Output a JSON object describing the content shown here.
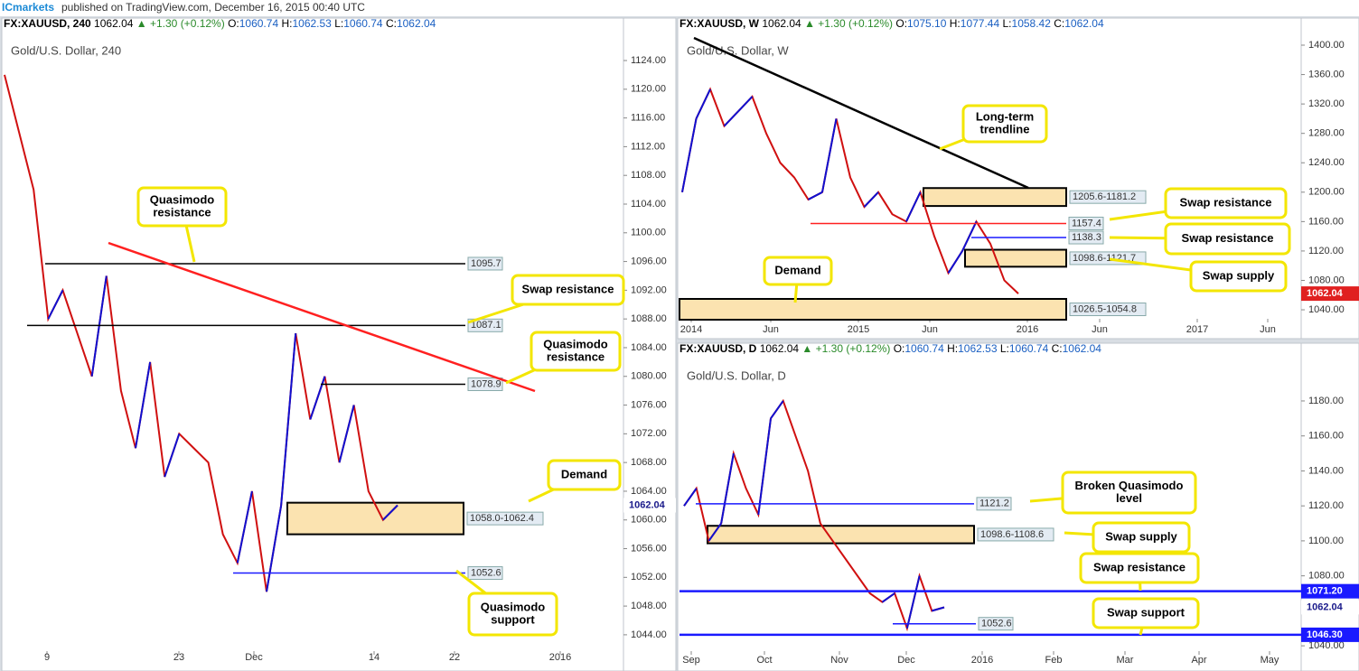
{
  "header": {
    "brand": "ICmarkets",
    "text": "published on TradingView.com, December 16, 2015 00:40 UTC"
  },
  "panels": [
    {
      "symbol": "FX:XAUUSD, 240",
      "price": "1062.04",
      "change": "▲ +1.30 (+0.12%)",
      "ohlc": [
        {
          "k": "O:",
          "v": "1060.74"
        },
        {
          "k": "H:",
          "v": "1062.53"
        },
        {
          "k": "L:",
          "v": "1060.74"
        },
        {
          "k": "C:",
          "v": "1062.04"
        }
      ],
      "chart_title": "Gold/U.S. Dollar, 240",
      "ylim": [
        1042.1,
        1127.4
      ],
      "yticks": [
        {
          "value": 1044,
          "label": "1044.00"
        },
        {
          "value": 1048,
          "label": "1048.00"
        },
        {
          "value": 1052,
          "label": "1052.00"
        },
        {
          "value": 1056,
          "label": "1056.00"
        },
        {
          "value": 1060,
          "label": "1060.00"
        },
        {
          "value": 1064,
          "label": "1064.00"
        },
        {
          "value": 1068,
          "label": "1068.00"
        },
        {
          "value": 1072,
          "label": "1072.00"
        },
        {
          "value": 1076,
          "label": "1076.00"
        },
        {
          "value": 1080,
          "label": "1080.00"
        },
        {
          "value": 1084,
          "label": "1084.00"
        },
        {
          "value": 1088,
          "label": "1088.00"
        },
        {
          "value": 1092,
          "label": "1092.00"
        },
        {
          "value": 1096,
          "label": "1096.00"
        },
        {
          "value": 1100,
          "label": "1100.00"
        },
        {
          "value": 1104,
          "label": "1104.00"
        },
        {
          "value": 1108,
          "label": "1108.00"
        },
        {
          "value": 1112,
          "label": "1112.00"
        },
        {
          "value": 1116,
          "label": "1116.00"
        },
        {
          "value": 1120,
          "label": "1120.00"
        },
        {
          "value": 1124,
          "label": "1124.00"
        }
      ],
      "xlabels": [
        "9",
        "23",
        "Dec",
        "14",
        "22",
        "2016"
      ],
      "closes": [
        1122,
        1114,
        1106,
        1088,
        1092,
        1086,
        1080,
        1094,
        1078,
        1070,
        1082,
        1066,
        1072,
        1070,
        1068,
        1058,
        1054,
        1064,
        1050,
        1062,
        1086,
        1074,
        1080,
        1068,
        1076,
        1064,
        1060,
        1062.04
      ],
      "current": {
        "value": 1062.04,
        "label": "1062.04"
      },
      "levels": [
        {
          "value": 1095.7,
          "label": "1095.7",
          "color": "#000000"
        },
        {
          "value": 1087.1,
          "label": "1087.1",
          "color": "#000000"
        },
        {
          "value": 1078.9,
          "label": "1078.9",
          "color": "#000000"
        },
        {
          "value": 1052.6,
          "label": "1052.6",
          "color": "#1a1aff"
        }
      ],
      "zones": [
        {
          "low": 1058.0,
          "high": 1062.4,
          "label": "1058.0-1062.4"
        }
      ],
      "callouts": [
        {
          "lines": [
            "Quasimodo",
            "resistance"
          ]
        },
        {
          "lines": [
            "Swap resistance"
          ]
        },
        {
          "lines": [
            "Quasimodo",
            "resistance"
          ]
        },
        {
          "lines": [
            "Demand"
          ]
        },
        {
          "lines": [
            "Quasimodo",
            "support"
          ]
        }
      ]
    },
    {
      "symbol": "FX:XAUUSD, W",
      "price": "1062.04",
      "change": "▲ +1.30 (+0.12%)",
      "ohlc": [
        {
          "k": "O:",
          "v": "1075.10"
        },
        {
          "k": "H:",
          "v": "1077.44"
        },
        {
          "k": "L:",
          "v": "1058.42"
        },
        {
          "k": "C:",
          "v": "1062.04"
        }
      ],
      "chart_title": "Gold/U.S. Dollar, W",
      "ylim": [
        1025.3,
        1412.3
      ],
      "yticks": [
        {
          "value": 1040,
          "label": "1040.00"
        },
        {
          "value": 1080,
          "label": "1080.00"
        },
        {
          "value": 1120,
          "label": "1120.00"
        },
        {
          "value": 1160,
          "label": "1160.00"
        },
        {
          "value": 1200,
          "label": "1200.00"
        },
        {
          "value": 1240,
          "label": "1240.00"
        },
        {
          "value": 1280,
          "label": "1280.00"
        },
        {
          "value": 1320,
          "label": "1320.00"
        },
        {
          "value": 1360,
          "label": "1360.00"
        },
        {
          "value": 1400,
          "label": "1400.00"
        }
      ],
      "xlabels": [
        "2014",
        "Jun",
        "2015",
        "Jun",
        "2016",
        "Jun",
        "2017",
        "Jun"
      ],
      "closes": [
        1200,
        1300,
        1340,
        1290,
        1310,
        1330,
        1280,
        1240,
        1220,
        1190,
        1200,
        1300,
        1220,
        1180,
        1200,
        1170,
        1160,
        1200,
        1140,
        1090,
        1120,
        1160,
        1130,
        1080,
        1062
      ],
      "current": {
        "value": 1062.04,
        "label": "1062.04"
      },
      "levels": [
        {
          "value": 1157.4,
          "label": "1157.4",
          "color": "#ff2020"
        },
        {
          "value": 1138.3,
          "label": "1138.3",
          "color": "#1a1aff"
        }
      ],
      "zones": [
        {
          "low": 1181.2,
          "high": 1205.6,
          "label": "1205.6-1181.2"
        },
        {
          "low": 1098.6,
          "high": 1121.7,
          "label": "1098.6-1121.7"
        },
        {
          "low": 1026.5,
          "high": 1054.8,
          "label": "1026.5-1054.8"
        }
      ],
      "callouts": [
        {
          "lines": [
            "Long-term",
            "trendline"
          ]
        },
        {
          "lines": [
            "Swap resistance"
          ]
        },
        {
          "lines": [
            "Swap resistance"
          ]
        },
        {
          "lines": [
            "Swap supply"
          ]
        },
        {
          "lines": [
            "Demand"
          ]
        }
      ]
    },
    {
      "symbol": "FX:XAUUSD, D",
      "price": "1062.04",
      "change": "▲ +1.30 (+0.12%)",
      "ohlc": [
        {
          "k": "O:",
          "v": "1060.74"
        },
        {
          "k": "H:",
          "v": "1062.53"
        },
        {
          "k": "L:",
          "v": "1060.74"
        },
        {
          "k": "C:",
          "v": "1062.04"
        }
      ],
      "chart_title": "Gold/U.S. Dollar, D",
      "ylim": [
        1038.5,
        1202.7
      ],
      "yticks": [
        {
          "value": 1040,
          "label": "1040.00"
        },
        {
          "value": 1060,
          "label": "1060.00"
        },
        {
          "value": 1080,
          "label": "1080.00"
        },
        {
          "value": 1100,
          "label": "1100.00"
        },
        {
          "value": 1120,
          "label": "1120.00"
        },
        {
          "value": 1140,
          "label": "1140.00"
        },
        {
          "value": 1160,
          "label": "1160.00"
        },
        {
          "value": 1180,
          "label": "1180.00"
        }
      ],
      "xlabels": [
        "Sep",
        "Oct",
        "Nov",
        "Dec",
        "2016",
        "Feb",
        "Mar",
        "Apr",
        "May"
      ],
      "closes": [
        1120,
        1130,
        1100,
        1110,
        1150,
        1130,
        1115,
        1170,
        1180,
        1160,
        1140,
        1110,
        1100,
        1090,
        1080,
        1070,
        1065,
        1070,
        1050,
        1080,
        1060,
        1062
      ],
      "current": {
        "value": 1062.04,
        "label": "1062.04"
      },
      "levels": [
        {
          "value": 1121.2,
          "label": "1121.2",
          "color": "#1a1aff"
        },
        {
          "value": 1071.2,
          "label": "1071.20",
          "color": "#1a1aff"
        },
        {
          "value": 1052.6,
          "label": "1052.6",
          "color": "#1a1aff"
        },
        {
          "value": 1046.3,
          "label": "1046.30",
          "color": "#1a1aff"
        }
      ],
      "zones": [
        {
          "low": 1098.6,
          "high": 1108.6,
          "label": "1098.6-1108.6"
        }
      ],
      "callouts": [
        {
          "lines": [
            "Broken Quasimodo",
            "level"
          ]
        },
        {
          "lines": [
            "Swap supply"
          ]
        },
        {
          "lines": [
            "Swap resistance"
          ]
        },
        {
          "lines": [
            "Swap support"
          ]
        }
      ]
    }
  ]
}
